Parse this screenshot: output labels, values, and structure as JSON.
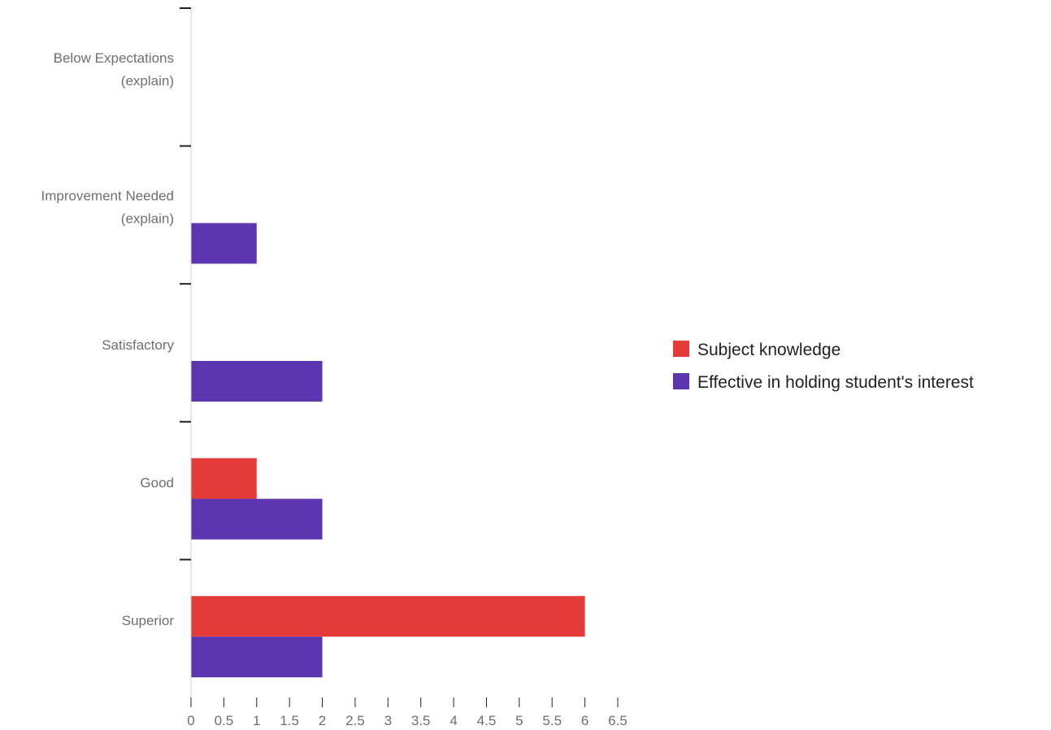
{
  "chart_data": {
    "type": "bar",
    "orientation": "horizontal",
    "categories": [
      "Below Expectations (explain)",
      "Improvement Needed (explain)",
      "Satisfactory",
      "Good",
      "Superior"
    ],
    "category_label_lines": [
      [
        "Below Expectations",
        "(explain)"
      ],
      [
        "Improvement Needed",
        "(explain)"
      ],
      [
        "Satisfactory"
      ],
      [
        "Good"
      ],
      [
        "Superior"
      ]
    ],
    "series": [
      {
        "name": "Subject knowledge",
        "color": "#e43a38",
        "values": [
          0,
          0,
          0,
          1,
          6
        ]
      },
      {
        "name": "Effective in holding student's interest",
        "color": "#5c35b1",
        "values": [
          0,
          1,
          2,
          2,
          2
        ]
      }
    ],
    "xlim": [
      0,
      6.5
    ],
    "x_ticks": [
      0,
      0.5,
      1,
      1.5,
      2,
      2.5,
      3,
      3.5,
      4,
      4.5,
      5,
      5.5,
      6,
      6.5
    ],
    "x_tick_labels": [
      "0",
      "0.5",
      "1",
      "1.5",
      "2",
      "2.5",
      "3",
      "3.5",
      "4",
      "4.5",
      "5",
      "5.5",
      "6",
      "6.5"
    ],
    "title": "",
    "xlabel": "",
    "ylabel": "",
    "grid": false,
    "legend_position": "right"
  },
  "colors": {
    "axis": "#cfcfcf",
    "tick_mark": "#222222",
    "label_text": "#6f6f6f",
    "legend_text": "#222222"
  }
}
